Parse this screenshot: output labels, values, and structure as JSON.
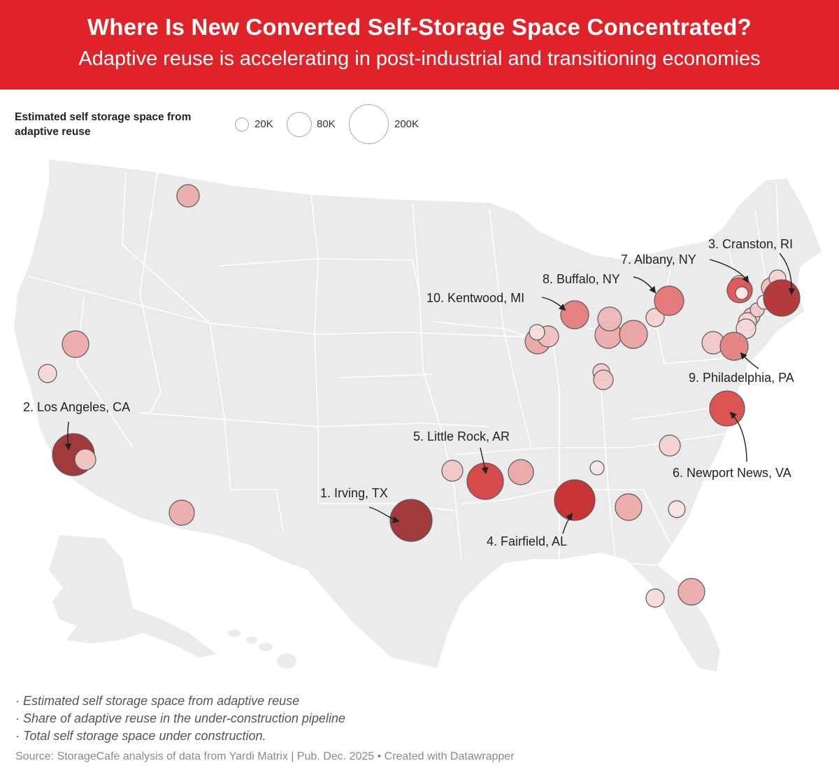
{
  "header": {
    "title": "Where Is New Converted Self-Storage Space Concentrated?",
    "subtitle": "Adaptive reuse is accelerating in post-industrial and transitioning economies"
  },
  "legend": {
    "title": "Estimated self storage space from adaptive reuse",
    "items": [
      {
        "label": "20K",
        "value": 20000
      },
      {
        "label": "80K",
        "value": 80000
      },
      {
        "label": "200K",
        "value": 200000
      }
    ]
  },
  "colors": {
    "header_bg": "#e02329",
    "land": "#ebebeb",
    "state_border": "#ffffff",
    "bubble_scale": [
      "#fbe0e0",
      "#f0b5b5",
      "#e88f8f",
      "#dc5555",
      "#c83537",
      "#a13a3c"
    ]
  },
  "ranked_labels": [
    {
      "rank": 1,
      "label": "1. Irving, TX"
    },
    {
      "rank": 2,
      "label": "2. Los Angeles, CA"
    },
    {
      "rank": 3,
      "label": "3. Cranston, RI"
    },
    {
      "rank": 4,
      "label": "4. Fairfield, AL"
    },
    {
      "rank": 5,
      "label": "5. Little Rock, AR"
    },
    {
      "rank": 6,
      "label": "6. Newport News, VA"
    },
    {
      "rank": 7,
      "label": "7. Albany, NY"
    },
    {
      "rank": 8,
      "label": "8. Buffalo, NY"
    },
    {
      "rank": 9,
      "label": "9. Philadelphia, PA"
    },
    {
      "rank": 10,
      "label": "10. Kentwood, MI"
    }
  ],
  "notes": [
    "· Estimated self storage space from adaptive reuse",
    "· Share of adaptive reuse in the under-construction pipeline",
    "· Total self storage space under construction."
  ],
  "source": "Source: StorageCafe analysis of data from Yardi Matrix | Pub. Dec. 2025 • Created with Datawrapper"
}
